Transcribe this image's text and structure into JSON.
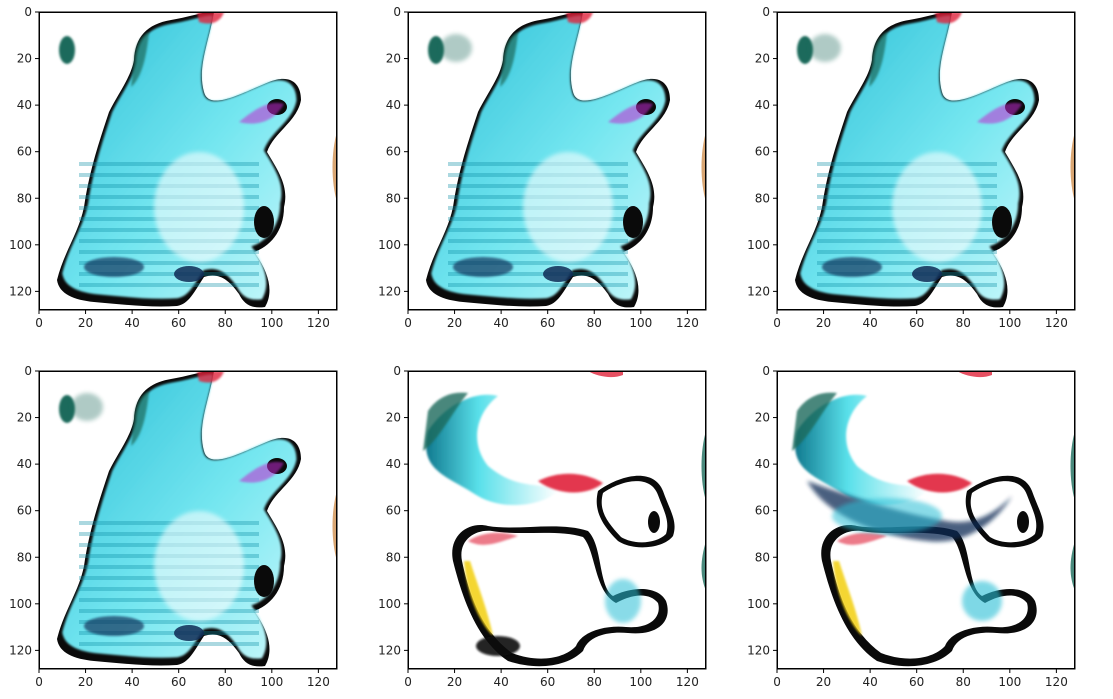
{
  "figure": {
    "panel_count": 6,
    "grid": {
      "rows": 2,
      "cols": 3
    },
    "image_size": 128,
    "x_ticks": [
      "0",
      "20",
      "40",
      "60",
      "80",
      "100",
      "120"
    ],
    "y_ticks": [
      "0",
      "20",
      "40",
      "60",
      "80",
      "100",
      "120"
    ],
    "x_tick_values": [
      0,
      20,
      40,
      60,
      80,
      100,
      120
    ],
    "y_tick_values": [
      0,
      20,
      40,
      60,
      80,
      100,
      120
    ],
    "colors": {
      "cyan": "#4fd6e6",
      "cyan_light": "#bff3f7",
      "navy": "#0f2a55",
      "black": "#0a0a0a",
      "green_teal": "#1c6b5b",
      "red": "#e0243b",
      "magenta": "#c02bd0",
      "yellow": "#f3d21b",
      "white": "#ffffff"
    }
  },
  "panels": [
    {
      "index": 1,
      "style": "monster-a"
    },
    {
      "index": 2,
      "style": "monster-b"
    },
    {
      "index": 3,
      "style": "monster-b"
    },
    {
      "index": 4,
      "style": "monster-c"
    },
    {
      "index": 5,
      "style": "blob-a"
    },
    {
      "index": 6,
      "style": "blob-b"
    }
  ]
}
